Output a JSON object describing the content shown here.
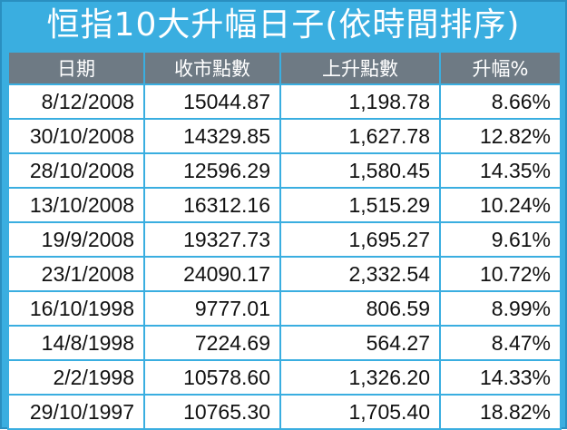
{
  "title": "恒指10大升幅日子(依時間排序)",
  "table": {
    "headers": [
      "日期",
      "收市點數",
      "上升點數",
      "升幅%"
    ],
    "rows": [
      [
        "8/12/2008",
        "15044.87",
        "1,198.78",
        "8.66%"
      ],
      [
        "30/10/2008",
        "14329.85",
        "1,627.78",
        "12.82%"
      ],
      [
        "28/10/2008",
        "12596.29",
        "1,580.45",
        "14.35%"
      ],
      [
        "13/10/2008",
        "16312.16",
        "1,515.29",
        "10.24%"
      ],
      [
        "19/9/2008",
        "19327.73",
        "1,695.27",
        "9.61%"
      ],
      [
        "23/1/2008",
        "24090.17",
        "2,332.54",
        "10.72%"
      ],
      [
        "16/10/1998",
        "9777.01",
        "806.59",
        "8.99%"
      ],
      [
        "14/8/1998",
        "7224.69",
        "564.27",
        "8.47%"
      ],
      [
        "2/2/1998",
        "10578.60",
        "1,326.20",
        "14.33%"
      ],
      [
        "29/10/1997",
        "10765.30",
        "1,705.40",
        "18.82%"
      ]
    ]
  },
  "colors": {
    "frame": "#3aaee0",
    "header": "#6e7a84"
  }
}
